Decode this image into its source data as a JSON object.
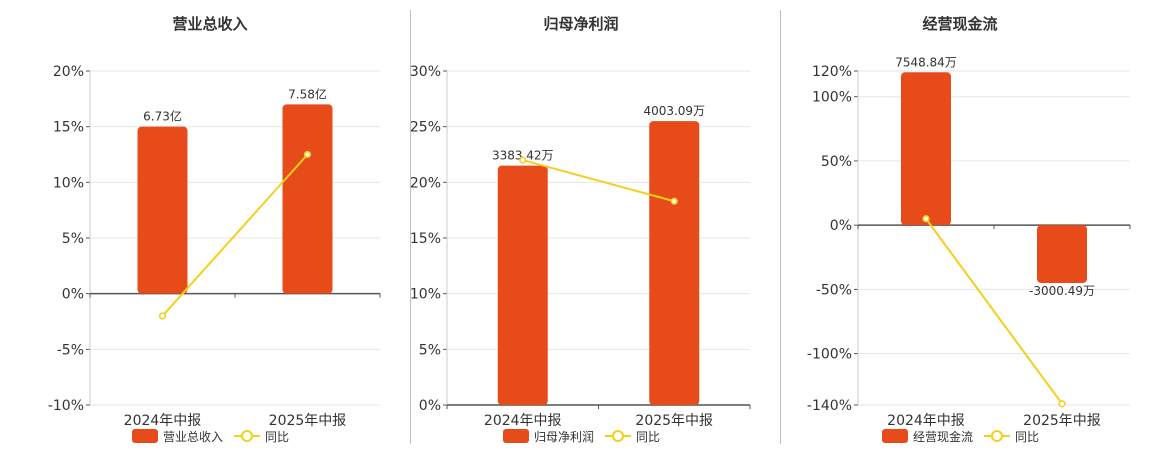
{
  "colors": {
    "bar": "#E84B1A",
    "line": "#F5CF1A",
    "axis": "#555555",
    "grid": "#e6e6e6",
    "title": "#333333",
    "tick": "#333333",
    "label": "#333333",
    "divider": "#bfbfbf"
  },
  "chart_data": [
    {
      "type": "bar",
      "title": "营业总收入",
      "categories": [
        "2024年中报",
        "2025年中报"
      ],
      "series": [
        {
          "name": "营业总收入",
          "kind": "bar",
          "values": [
            15.0,
            17.0
          ],
          "labels": [
            "6.73亿",
            "7.58亿"
          ]
        },
        {
          "name": "同比",
          "kind": "line",
          "values": [
            -2.0,
            12.5
          ]
        }
      ],
      "ylim": [
        -10,
        20
      ],
      "yticks": [
        -10,
        -5,
        0,
        5,
        10,
        15,
        20
      ],
      "ytick_labels": [
        "-10%",
        "-5%",
        "0%",
        "5%",
        "10%",
        "15%",
        "20%"
      ],
      "grid": true,
      "legend": "bottom-center"
    },
    {
      "type": "bar",
      "title": "归母净利润",
      "categories": [
        "2024年中报",
        "2025年中报"
      ],
      "series": [
        {
          "name": "归母净利润",
          "kind": "bar",
          "values": [
            21.5,
            25.5
          ],
          "labels": [
            "3383.42万",
            "4003.09万"
          ]
        },
        {
          "name": "同比",
          "kind": "line",
          "values": [
            22.0,
            18.3
          ]
        }
      ],
      "ylim": [
        0,
        30
      ],
      "yticks": [
        0,
        5,
        10,
        15,
        20,
        25,
        30
      ],
      "ytick_labels": [
        "0%",
        "5%",
        "10%",
        "15%",
        "20%",
        "25%",
        "30%"
      ],
      "grid": true,
      "legend": "bottom-center"
    },
    {
      "type": "bar",
      "title": "经营现金流",
      "categories": [
        "2024年中报",
        "2025年中报"
      ],
      "series": [
        {
          "name": "经营现金流",
          "kind": "bar",
          "values": [
            119.0,
            -45.0
          ],
          "labels": [
            "7548.84万",
            "-3000.49万"
          ]
        },
        {
          "name": "同比",
          "kind": "line",
          "values": [
            5.0,
            -139.0
          ]
        }
      ],
      "ylim": [
        -140,
        120
      ],
      "yticks": [
        -140,
        -100,
        -50,
        0,
        50,
        100,
        120
      ],
      "ytick_labels": [
        "-140%",
        "-100%",
        "-50%",
        "0%",
        "50%",
        "100%",
        "120%"
      ],
      "grid": true,
      "legend": "bottom-center"
    }
  ]
}
